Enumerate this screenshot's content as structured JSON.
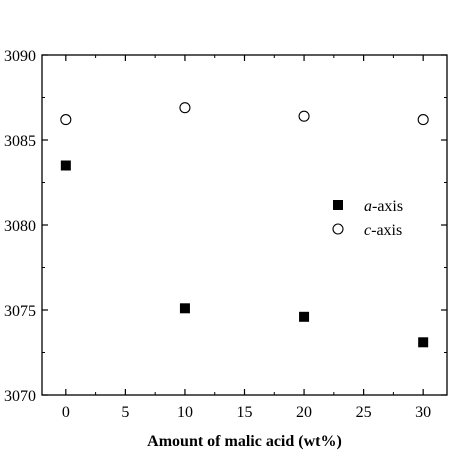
{
  "chart_data": {
    "type": "scatter",
    "xlabel": "Amount of malic acid (wt%)",
    "ylabel": "",
    "xlim": [
      -2,
      32
    ],
    "ylim": [
      3070,
      3090
    ],
    "x_ticks": [
      0,
      5,
      10,
      15,
      20,
      25,
      30
    ],
    "x_tick_labels": [
      "0",
      "5",
      "10",
      "15",
      "20",
      "25",
      "30"
    ],
    "y_ticks": [
      3070,
      3075,
      3080,
      3085,
      3090
    ],
    "y_tick_labels": [
      "3070",
      "3075",
      "3080",
      "3085",
      "3090"
    ],
    "grid": false,
    "legend_position": "center-right",
    "series": [
      {
        "name_italic": "a",
        "name_rest": "-axis",
        "marker": "filled-square",
        "x": [
          0,
          10,
          20,
          30
        ],
        "y": [
          3083.5,
          3075.1,
          3074.6,
          3073.1
        ]
      },
      {
        "name_italic": "c",
        "name_rest": "-axis",
        "marker": "open-circle",
        "x": [
          0,
          10,
          20,
          30
        ],
        "y": [
          3086.2,
          3086.9,
          3086.4,
          3086.2
        ]
      }
    ]
  }
}
